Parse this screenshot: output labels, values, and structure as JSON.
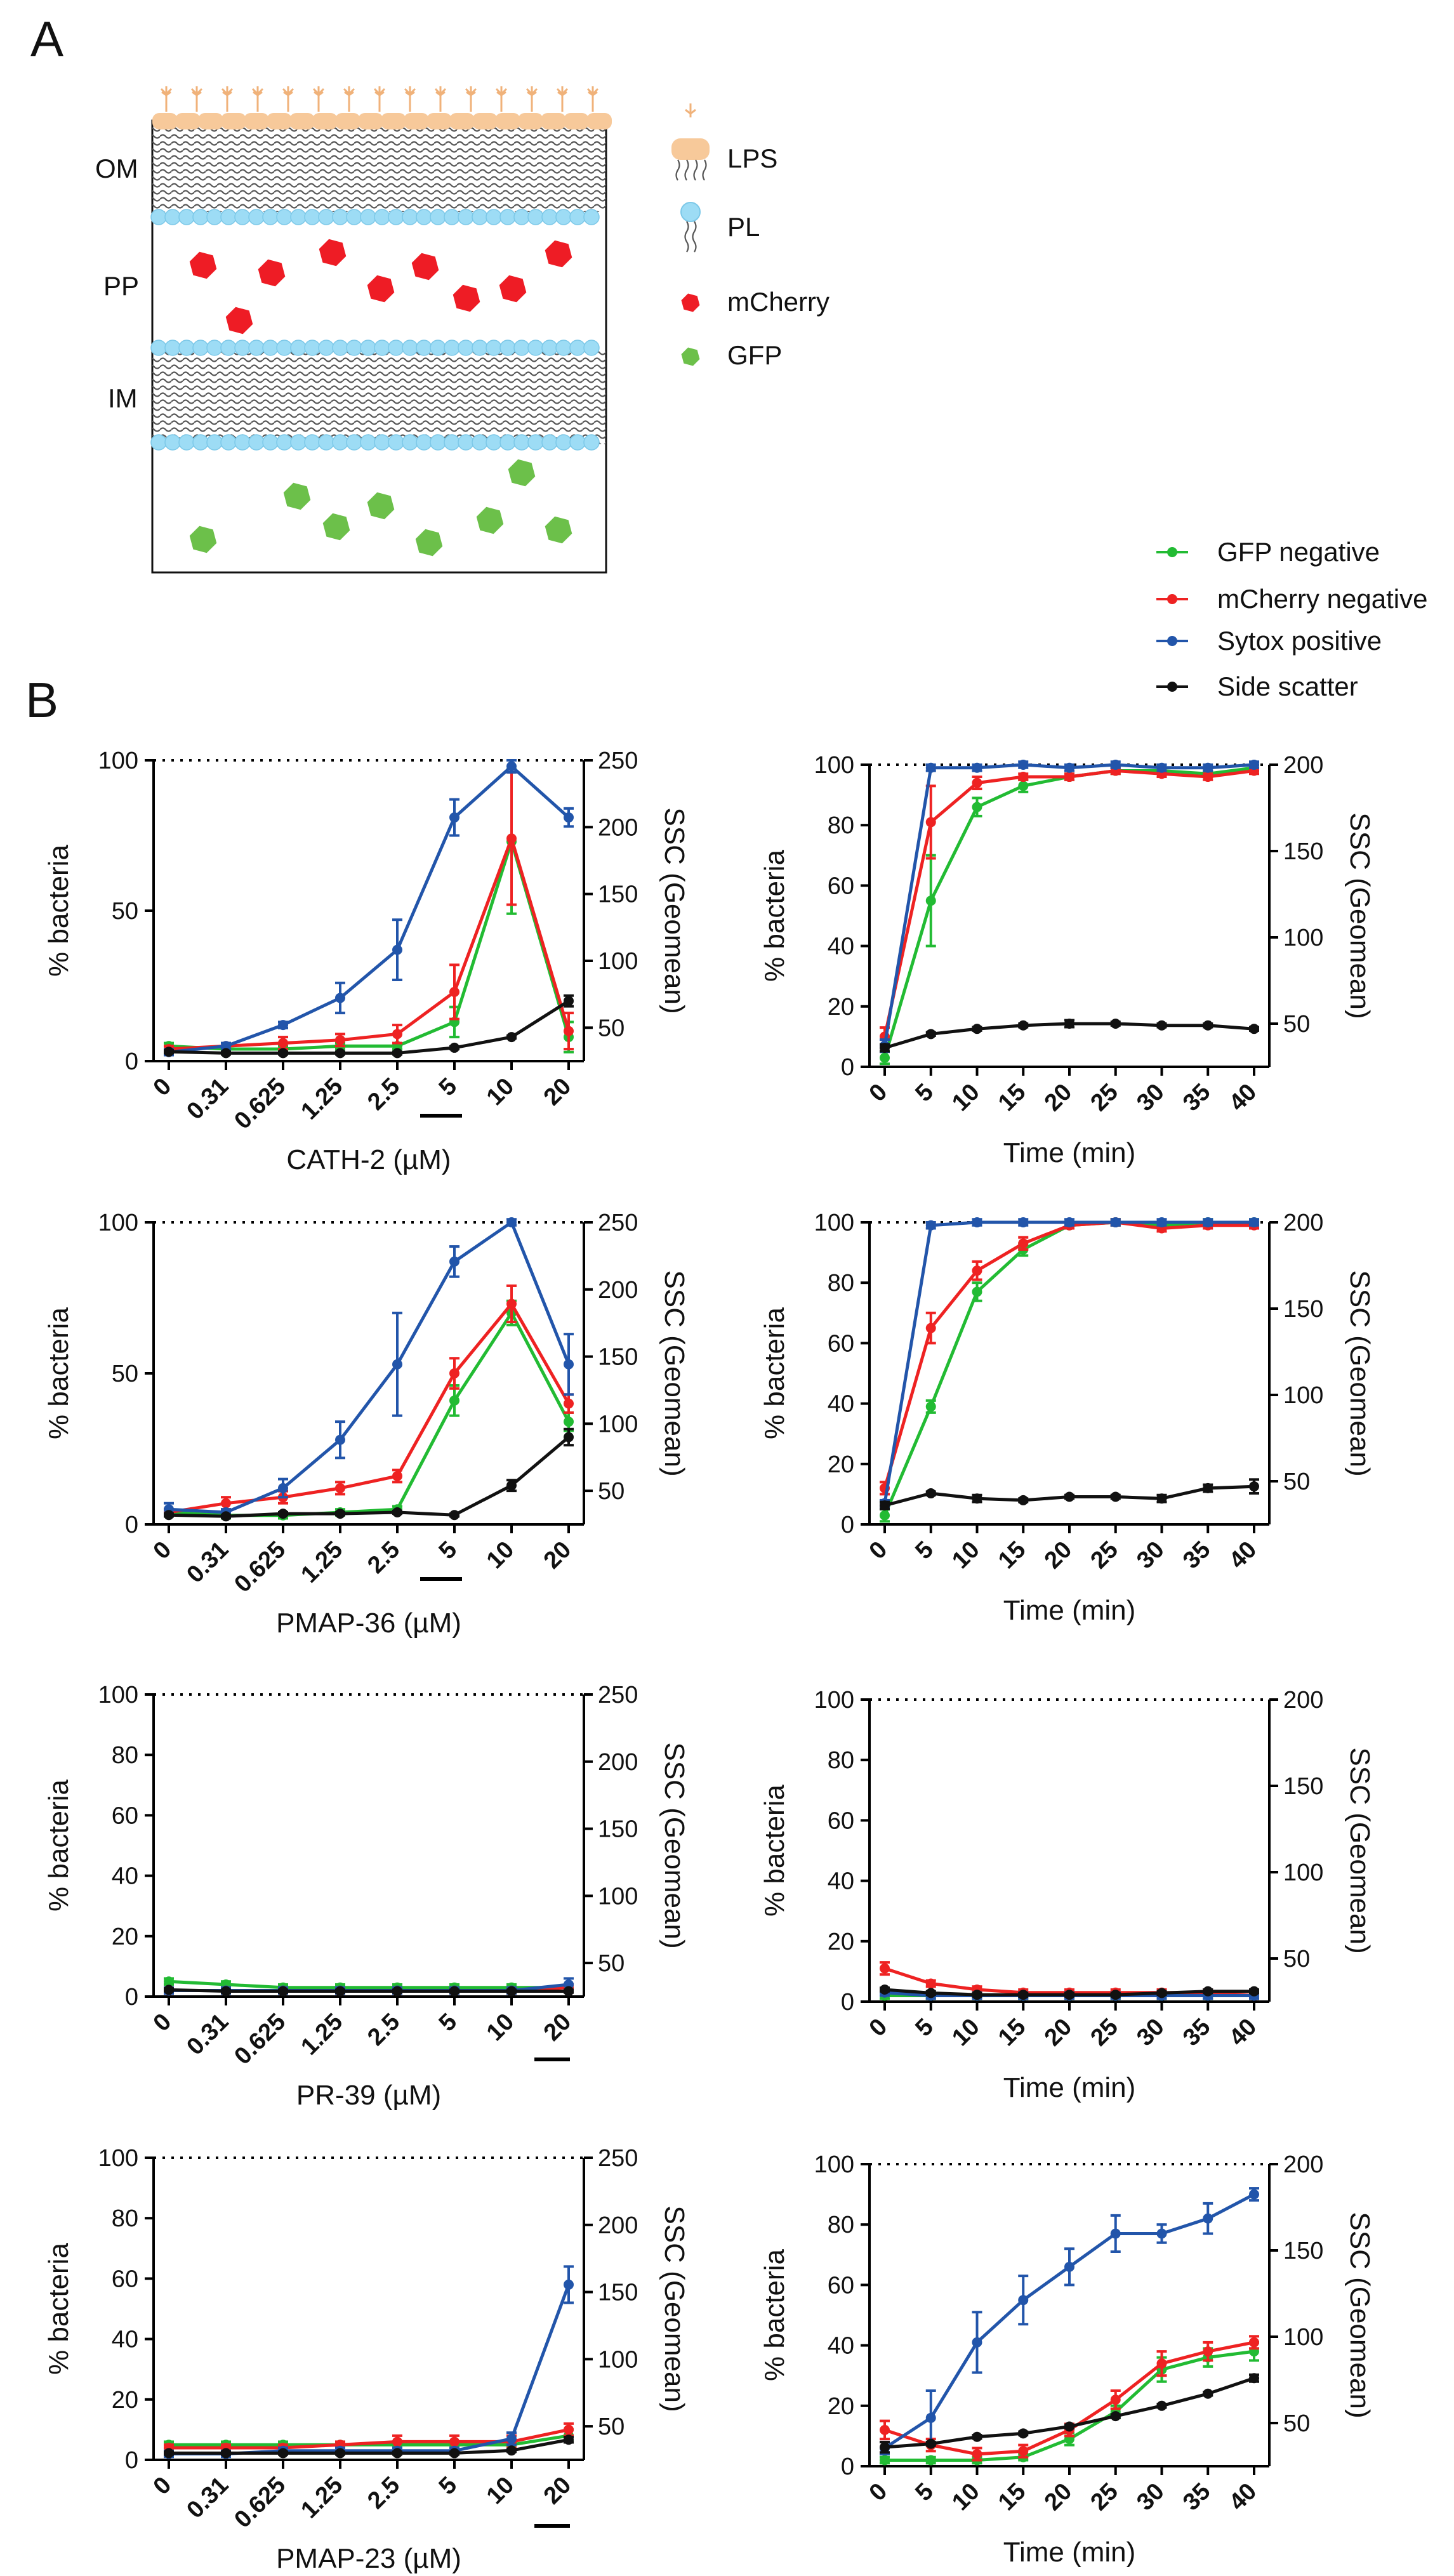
{
  "panel_labels": {
    "a": "A",
    "b": "B"
  },
  "schematic": {
    "layer_labels": [
      "OM",
      "PP",
      "IM"
    ],
    "legend": [
      {
        "label": "LPS",
        "icon": "lps-icon",
        "color": "#f7c99a"
      },
      {
        "label": "PL",
        "icon": "phospholipid-icon",
        "color": "#9ddcf5"
      },
      {
        "label": "mCherry",
        "icon": "mcherry-hexagon-icon",
        "color": "#ee1c25"
      },
      {
        "label": "GFP",
        "icon": "gfp-hexagon-icon",
        "color": "#6cc04a"
      }
    ]
  },
  "legend": {
    "entries": [
      {
        "label": "GFP negative",
        "color": "#22bb33"
      },
      {
        "label": "mCherry negative",
        "color": "#ee2222"
      },
      {
        "label": "Sytox positive",
        "color": "#2255aa"
      },
      {
        "label": "Side scatter",
        "color": "#111111"
      }
    ]
  },
  "chart_data": [
    {
      "type": "line",
      "id": "cath2-conc",
      "title": "",
      "xlabel": "CATH-2 (µM)",
      "ylabel": "% bacteria",
      "y2label": "SSC (Geomean)",
      "categories": [
        "0",
        "0.31",
        "0.625",
        "1.25",
        "2.5",
        "5",
        "10",
        "20"
      ],
      "underlined_category": "5",
      "ylim": [
        0,
        100
      ],
      "yticks": [
        0,
        50,
        100
      ],
      "y2lim": [
        25,
        250
      ],
      "y2ticks": [
        50,
        100,
        150,
        200,
        250
      ],
      "reference_line_y": 100,
      "series": [
        {
          "name": "GFP negative",
          "axis": "left",
          "values": [
            5,
            4,
            4,
            5,
            5,
            13,
            73,
            8
          ],
          "errors": [
            1,
            1,
            1,
            1,
            1,
            5,
            24,
            5
          ]
        },
        {
          "name": "mCherry negative",
          "axis": "left",
          "values": [
            4,
            5,
            6,
            7,
            9,
            23,
            74,
            10
          ],
          "errors": [
            1,
            1,
            2,
            2,
            3,
            9,
            22,
            6
          ]
        },
        {
          "name": "Sytox positive",
          "axis": "left",
          "values": [
            3,
            5,
            12,
            21,
            37,
            81,
            98,
            81
          ],
          "errors": [
            1,
            1,
            1,
            5,
            10,
            6,
            2,
            3
          ]
        },
        {
          "name": "Side scatter",
          "axis": "right",
          "values": [
            32,
            31,
            31,
            31,
            31,
            35,
            43,
            70
          ],
          "errors": [
            1,
            1,
            1,
            1,
            1,
            1,
            1,
            4
          ]
        }
      ]
    },
    {
      "type": "line",
      "id": "cath2-time",
      "title": "",
      "xlabel": "Time (min)",
      "ylabel": "% bacteria",
      "y2label": "SSC (Geomean)",
      "categories": [
        "0",
        "5",
        "10",
        "15",
        "20",
        "25",
        "30",
        "35",
        "40"
      ],
      "ylim": [
        0,
        100
      ],
      "yticks": [
        0,
        20,
        40,
        60,
        80,
        100
      ],
      "y2lim": [
        25,
        200
      ],
      "y2ticks": [
        50,
        100,
        150,
        200
      ],
      "reference_line_y": 100,
      "series": [
        {
          "name": "GFP negative",
          "axis": "left",
          "values": [
            3,
            55,
            86,
            93,
            96,
            98,
            98,
            97,
            99
          ],
          "errors": [
            2,
            15,
            3,
            2,
            1,
            1,
            1,
            1,
            1
          ]
        },
        {
          "name": "mCherry negative",
          "axis": "left",
          "values": [
            10,
            81,
            94,
            96,
            96,
            98,
            97,
            96,
            98
          ],
          "errors": [
            3,
            12,
            2,
            1,
            1,
            1,
            1,
            1,
            1
          ]
        },
        {
          "name": "Sytox positive",
          "axis": "left",
          "values": [
            7,
            99,
            99,
            100,
            99,
            100,
            99,
            99,
            100
          ],
          "errors": [
            2,
            1,
            1,
            1,
            1,
            1,
            1,
            1,
            1
          ]
        },
        {
          "name": "Side scatter",
          "axis": "right",
          "values": [
            36,
            44,
            47,
            49,
            50,
            50,
            49,
            49,
            47
          ],
          "errors": [
            2,
            1,
            1,
            1,
            2,
            1,
            1,
            1,
            1
          ]
        }
      ]
    },
    {
      "type": "line",
      "id": "pmap36-conc",
      "title": "",
      "xlabel": "PMAP-36 (µM)",
      "ylabel": "% bacteria",
      "y2label": "SSC (Geomean)",
      "categories": [
        "0",
        "0.31",
        "0.625",
        "1.25",
        "2.5",
        "5",
        "10",
        "20"
      ],
      "underlined_category": "5",
      "ylim": [
        0,
        100
      ],
      "yticks": [
        0,
        50,
        100
      ],
      "y2lim": [
        25,
        250
      ],
      "y2ticks": [
        50,
        100,
        150,
        200,
        250
      ],
      "reference_line_y": 100,
      "series": [
        {
          "name": "GFP negative",
          "axis": "left",
          "values": [
            4,
            3,
            3,
            4,
            5,
            41,
            70,
            34
          ],
          "errors": [
            1,
            1,
            1,
            1,
            1,
            5,
            4,
            3
          ]
        },
        {
          "name": "mCherry negative",
          "axis": "left",
          "values": [
            4,
            7,
            9,
            12,
            16,
            50,
            73,
            40
          ],
          "errors": [
            1,
            2,
            2,
            2,
            2,
            5,
            6,
            3
          ]
        },
        {
          "name": "Sytox positive",
          "axis": "left",
          "values": [
            5,
            4,
            12,
            28,
            53,
            87,
            100,
            53
          ],
          "errors": [
            2,
            1,
            3,
            6,
            17,
            5,
            1,
            10
          ]
        },
        {
          "name": "Side scatter",
          "axis": "right",
          "values": [
            32,
            31,
            33,
            33,
            34,
            32,
            54,
            90
          ],
          "errors": [
            1,
            1,
            1,
            1,
            1,
            1,
            4,
            6
          ]
        }
      ]
    },
    {
      "type": "line",
      "id": "pmap36-time",
      "title": "",
      "xlabel": "Time (min)",
      "ylabel": "% bacteria",
      "y2label": "SSC (Geomean)",
      "categories": [
        "0",
        "5",
        "10",
        "15",
        "20",
        "25",
        "30",
        "35",
        "40"
      ],
      "ylim": [
        0,
        100
      ],
      "yticks": [
        0,
        20,
        40,
        60,
        80,
        100
      ],
      "y2lim": [
        25,
        200
      ],
      "y2ticks": [
        50,
        100,
        150,
        200
      ],
      "reference_line_y": 100,
      "series": [
        {
          "name": "GFP negative",
          "axis": "left",
          "values": [
            3,
            39,
            77,
            91,
            99,
            100,
            99,
            100,
            100
          ],
          "errors": [
            2,
            2,
            3,
            2,
            1,
            1,
            1,
            1,
            1
          ]
        },
        {
          "name": "mCherry negative",
          "axis": "left",
          "values": [
            12,
            65,
            84,
            93,
            99,
            100,
            98,
            99,
            99
          ],
          "errors": [
            2,
            5,
            3,
            2,
            1,
            1,
            1,
            1,
            1
          ]
        },
        {
          "name": "Sytox positive",
          "axis": "left",
          "values": [
            7,
            99,
            100,
            100,
            100,
            100,
            100,
            100,
            100
          ],
          "errors": [
            1,
            1,
            1,
            1,
            1,
            1,
            1,
            1,
            1
          ]
        },
        {
          "name": "Side scatter",
          "axis": "right",
          "values": [
            36,
            43,
            40,
            39,
            41,
            41,
            40,
            46,
            47
          ],
          "errors": [
            2,
            1,
            2,
            1,
            1,
            1,
            2,
            2,
            4
          ]
        }
      ]
    },
    {
      "type": "line",
      "id": "pr39-conc",
      "title": "",
      "xlabel": "PR-39 (µM)",
      "ylabel": "% bacteria",
      "y2label": "SSC (Geomean)",
      "categories": [
        "0",
        "0.31",
        "0.625",
        "1.25",
        "2.5",
        "5",
        "10",
        "20"
      ],
      "underlined_category": "20",
      "ylim": [
        0,
        100
      ],
      "yticks": [
        0,
        20,
        40,
        60,
        80,
        100
      ],
      "y2lim": [
        25,
        250
      ],
      "y2ticks": [
        50,
        100,
        150,
        200,
        250
      ],
      "reference_line_y": 100,
      "series": [
        {
          "name": "GFP negative",
          "axis": "left",
          "values": [
            5,
            4,
            3,
            3,
            3,
            3,
            3,
            3
          ],
          "errors": [
            1,
            1,
            1,
            1,
            1,
            1,
            1,
            1
          ]
        },
        {
          "name": "mCherry negative",
          "axis": "left",
          "values": [
            2,
            2,
            2,
            2,
            2,
            2,
            2,
            3
          ],
          "errors": [
            1,
            1,
            1,
            1,
            1,
            1,
            1,
            1
          ]
        },
        {
          "name": "Sytox positive",
          "axis": "left",
          "values": [
            2,
            2,
            2,
            2,
            2,
            2,
            2,
            4
          ],
          "errors": [
            1,
            1,
            1,
            1,
            1,
            1,
            1,
            2
          ]
        },
        {
          "name": "Side scatter",
          "axis": "right",
          "values": [
            30,
            29,
            29,
            29,
            29,
            29,
            29,
            29
          ],
          "errors": [
            1,
            1,
            1,
            1,
            1,
            1,
            1,
            1
          ]
        }
      ]
    },
    {
      "type": "line",
      "id": "pr39-time",
      "title": "",
      "xlabel": "Time (min)",
      "ylabel": "% bacteria",
      "y2label": "SSC (Geomean)",
      "categories": [
        "0",
        "5",
        "10",
        "15",
        "20",
        "25",
        "30",
        "35",
        "40"
      ],
      "ylim": [
        0,
        100
      ],
      "yticks": [
        0,
        20,
        40,
        60,
        80,
        100
      ],
      "y2lim": [
        25,
        200
      ],
      "y2ticks": [
        50,
        100,
        150,
        200
      ],
      "reference_line_y": 100,
      "series": [
        {
          "name": "GFP negative",
          "axis": "left",
          "values": [
            2,
            2,
            2,
            2,
            2,
            2,
            2,
            2,
            2
          ],
          "errors": [
            1,
            1,
            1,
            1,
            1,
            1,
            1,
            1,
            1
          ]
        },
        {
          "name": "mCherry negative",
          "axis": "left",
          "values": [
            11,
            6,
            4,
            3,
            3,
            3,
            3,
            3,
            2
          ],
          "errors": [
            2,
            1,
            1,
            1,
            1,
            1,
            1,
            1,
            1
          ]
        },
        {
          "name": "Sytox positive",
          "axis": "left",
          "values": [
            3,
            2,
            2,
            2,
            2,
            2,
            2,
            2,
            2
          ],
          "errors": [
            1,
            1,
            1,
            1,
            1,
            1,
            1,
            1,
            1
          ]
        },
        {
          "name": "Side scatter",
          "axis": "right",
          "values": [
            32,
            30,
            29,
            29,
            29,
            29,
            30,
            31,
            31
          ],
          "errors": [
            1,
            1,
            1,
            1,
            1,
            1,
            1,
            1,
            1
          ]
        }
      ]
    },
    {
      "type": "line",
      "id": "pmap23-conc",
      "title": "",
      "xlabel": "PMAP-23 (µM)",
      "ylabel": "% bacteria",
      "y2label": "SSC (Geomean)",
      "categories": [
        "0",
        "0.31",
        "0.625",
        "1.25",
        "2.5",
        "5",
        "10",
        "20"
      ],
      "underlined_category": "20",
      "ylim": [
        0,
        100
      ],
      "yticks": [
        0,
        20,
        40,
        60,
        80,
        100
      ],
      "y2lim": [
        25,
        250
      ],
      "y2ticks": [
        50,
        100,
        150,
        200,
        250
      ],
      "reference_line_y": 100,
      "series": [
        {
          "name": "GFP negative",
          "axis": "left",
          "values": [
            5,
            5,
            5,
            5,
            5,
            5,
            5,
            8
          ],
          "errors": [
            1,
            1,
            1,
            1,
            1,
            1,
            1,
            2
          ]
        },
        {
          "name": "mCherry negative",
          "axis": "left",
          "values": [
            4,
            4,
            4,
            5,
            6,
            6,
            6,
            10
          ],
          "errors": [
            1,
            1,
            1,
            1,
            2,
            2,
            2,
            2
          ]
        },
        {
          "name": "Sytox positive",
          "axis": "left",
          "values": [
            2,
            2,
            3,
            3,
            3,
            3,
            7,
            58
          ],
          "errors": [
            1,
            1,
            1,
            1,
            1,
            1,
            2,
            6
          ]
        },
        {
          "name": "Side scatter",
          "axis": "right",
          "values": [
            30,
            30,
            30,
            30,
            30,
            30,
            32,
            40
          ],
          "errors": [
            1,
            1,
            1,
            1,
            1,
            1,
            1,
            2
          ]
        }
      ]
    },
    {
      "type": "line",
      "id": "pmap23-time",
      "title": "",
      "xlabel": "Time (min)",
      "ylabel": "% bacteria",
      "y2label": "SSC (Geomean)",
      "categories": [
        "0",
        "5",
        "10",
        "15",
        "20",
        "25",
        "30",
        "35",
        "40"
      ],
      "ylim": [
        0,
        100
      ],
      "yticks": [
        0,
        20,
        40,
        60,
        80,
        100
      ],
      "y2lim": [
        25,
        200
      ],
      "y2ticks": [
        50,
        100,
        150,
        200
      ],
      "reference_line_y": 100,
      "series": [
        {
          "name": "GFP negative",
          "axis": "left",
          "values": [
            2,
            2,
            2,
            3,
            9,
            18,
            32,
            36,
            38
          ],
          "errors": [
            1,
            1,
            1,
            1,
            2,
            2,
            4,
            3,
            3
          ]
        },
        {
          "name": "mCherry negative",
          "axis": "left",
          "values": [
            12,
            7,
            4,
            5,
            12,
            22,
            34,
            38,
            41
          ],
          "errors": [
            3,
            2,
            2,
            2,
            2,
            3,
            4,
            3,
            2
          ]
        },
        {
          "name": "Sytox positive",
          "axis": "left",
          "values": [
            6,
            16,
            41,
            55,
            66,
            77,
            77,
            82,
            90
          ],
          "errors": [
            2,
            9,
            10,
            8,
            6,
            6,
            3,
            5,
            2
          ]
        },
        {
          "name": "Side scatter",
          "axis": "right",
          "values": [
            36,
            38,
            42,
            44,
            48,
            54,
            60,
            67,
            76
          ],
          "errors": [
            3,
            1,
            1,
            1,
            1,
            1,
            1,
            1,
            2
          ]
        }
      ]
    }
  ]
}
